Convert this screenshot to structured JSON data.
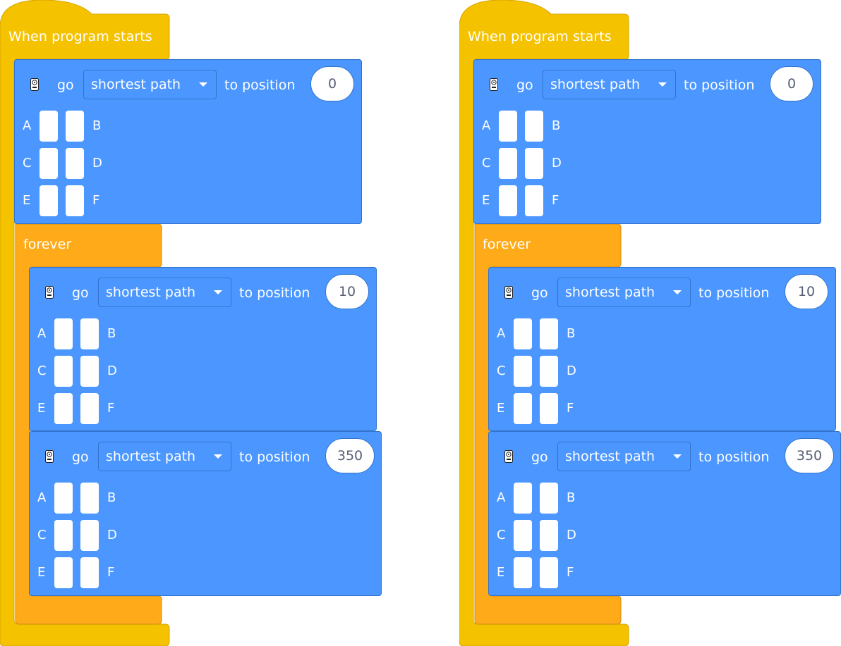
{
  "colors": {
    "events": "#F5C200",
    "events_border": "#D9A500",
    "control": "#FFAB19",
    "control_border": "#CF8B17",
    "motion": "#4C97FF",
    "motion_border": "#3373CC",
    "text": "#FFFFFF",
    "input_text": "#575E75"
  },
  "scripts": [
    {
      "hat_label": "When program starts",
      "forever_label": "forever",
      "blocks": [
        {
          "icon": "hub-icon",
          "go_label": "go",
          "path_option": "shortest path",
          "to_label": "to position",
          "position_value": "0",
          "ports": [
            [
              "A",
              "B"
            ],
            [
              "C",
              "D"
            ],
            [
              "E",
              "F"
            ]
          ]
        },
        {
          "icon": "hub-icon",
          "go_label": "go",
          "path_option": "shortest path",
          "to_label": "to position",
          "position_value": "10",
          "ports": [
            [
              "A",
              "B"
            ],
            [
              "C",
              "D"
            ],
            [
              "E",
              "F"
            ]
          ]
        },
        {
          "icon": "hub-icon",
          "go_label": "go",
          "path_option": "shortest path",
          "to_label": "to position",
          "position_value": "350",
          "ports": [
            [
              "A",
              "B"
            ],
            [
              "C",
              "D"
            ],
            [
              "E",
              "F"
            ]
          ]
        }
      ]
    },
    {
      "hat_label": "When program starts",
      "forever_label": "forever",
      "blocks": [
        {
          "icon": "hub-icon",
          "go_label": "go",
          "path_option": "shortest path",
          "to_label": "to position",
          "position_value": "0",
          "ports": [
            [
              "A",
              "B"
            ],
            [
              "C",
              "D"
            ],
            [
              "E",
              "F"
            ]
          ]
        },
        {
          "icon": "hub-icon",
          "go_label": "go",
          "path_option": "shortest path",
          "to_label": "to position",
          "position_value": "10",
          "ports": [
            [
              "A",
              "B"
            ],
            [
              "C",
              "D"
            ],
            [
              "E",
              "F"
            ]
          ]
        },
        {
          "icon": "hub-icon",
          "go_label": "go",
          "path_option": "shortest path",
          "to_label": "to position",
          "position_value": "350",
          "ports": [
            [
              "A",
              "B"
            ],
            [
              "C",
              "D"
            ],
            [
              "E",
              "F"
            ]
          ]
        }
      ]
    }
  ]
}
